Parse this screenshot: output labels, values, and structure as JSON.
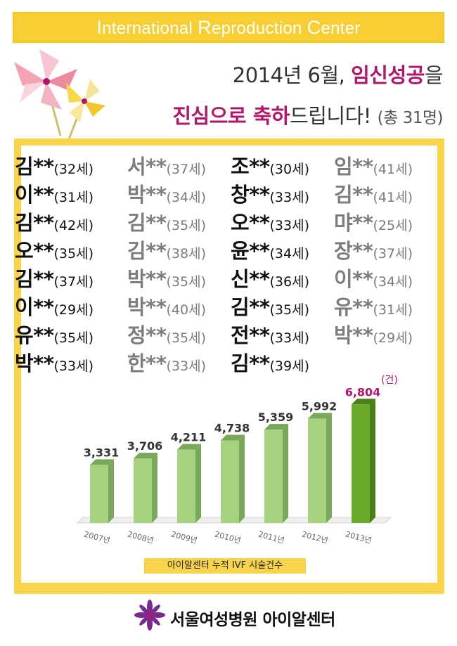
{
  "banner": {
    "parts": [
      {
        "big": "I",
        "rest": "nternational "
      },
      {
        "big": "R",
        "rest": "eproduction "
      },
      {
        "big": "C",
        "rest": "enter"
      }
    ]
  },
  "headline": {
    "line1_prefix": "2014년 6월, ",
    "line1_highlight": "임신성공",
    "line1_suffix": "을",
    "line2_highlight1": "진심으로 축하",
    "line2_mid": "드립니다! ",
    "line2_count": "(총 31명)"
  },
  "names": {
    "rows": [
      [
        [
          "김**",
          "(32세)"
        ],
        [
          "서**",
          "(37세)"
        ],
        [
          "조**",
          "(30세)"
        ],
        [
          "임**",
          "(41세)"
        ]
      ],
      [
        [
          "이**",
          "(31세)"
        ],
        [
          "박**",
          "(34세)"
        ],
        [
          "창**",
          "(33세)"
        ],
        [
          "김**",
          "(41세)"
        ]
      ],
      [
        [
          "김**",
          "(42세)"
        ],
        [
          "김**",
          "(35세)"
        ],
        [
          "오**",
          "(33세)"
        ],
        [
          "먀**",
          "(25세)"
        ]
      ],
      [
        [
          "오**",
          "(35세)"
        ],
        [
          "김**",
          "(38세)"
        ],
        [
          "윤**",
          "(34세)"
        ],
        [
          "장**",
          "(37세)"
        ]
      ],
      [
        [
          "김**",
          "(37세)"
        ],
        [
          "박**",
          "(35세)"
        ],
        [
          "신**",
          "(36세)"
        ],
        [
          "이**",
          "(34세)"
        ]
      ],
      [
        [
          "이**",
          "(29세)"
        ],
        [
          "박**",
          "(40세)"
        ],
        [
          "김**",
          "(35세)"
        ],
        [
          "유**",
          "(31세)"
        ]
      ],
      [
        [
          "유**",
          "(35세)"
        ],
        [
          "정**",
          "(35세)"
        ],
        [
          "전**",
          "(33세)"
        ],
        [
          "박**",
          "(29세)"
        ]
      ],
      [
        [
          "박**",
          "(33세)"
        ],
        [
          "한**",
          "(33세)"
        ],
        [
          "김**",
          "(39세)"
        ]
      ]
    ]
  },
  "chart_data": {
    "type": "bar",
    "categories": [
      "2007년",
      "2008년",
      "2009년",
      "2010년",
      "2011년",
      "2012년",
      "2013년"
    ],
    "values": [
      3331,
      3706,
      4211,
      4738,
      5359,
      5992,
      6804
    ],
    "value_labels": [
      "3,331",
      "3,706",
      "4,211",
      "4,738",
      "5,359",
      "5,992",
      "6,804"
    ],
    "unit_label": "(건)",
    "caption": "아이알센터 누적 IVF 시술건수",
    "colors": {
      "bar": "#a6d27f",
      "bar_side": "#7aa85a",
      "highlight_bar": "#6aaa2a",
      "highlight_side": "#4a8018",
      "highlight_label": "#b2166b"
    },
    "highlight_index": 6,
    "ylim": [
      0,
      7500
    ],
    "grid": false
  },
  "footer": {
    "text": "서울여성병원 아이알센터",
    "logo_icon": "purple-flower-icon"
  },
  "colors": {
    "banner": "#f7cf34",
    "panel_border": "#f8d44a",
    "accent": "#b2166b"
  }
}
